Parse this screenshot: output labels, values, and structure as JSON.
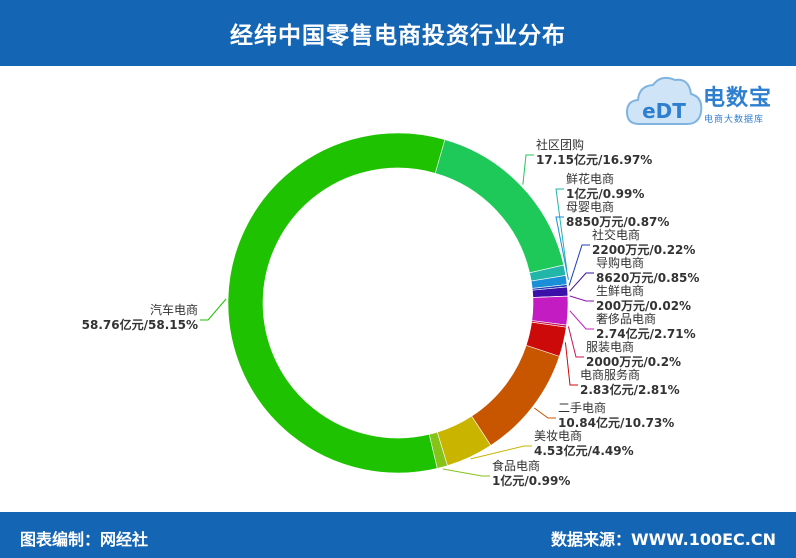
{
  "title": "经纬中国零售电商投资行业分布",
  "footer": {
    "left": "图表编制：网经社",
    "right": "数据来源：WWW.100EC.CN"
  },
  "logo": {
    "name": "电数宝",
    "sub": "电商大数据库",
    "mark": "eDT"
  },
  "colors": {
    "header": "#1565b5"
  },
  "chart_data": {
    "type": "pie",
    "variant": "donut",
    "start_angle_deg": 16,
    "slices": [
      {
        "name": "社区团购",
        "label": "17.15亿元/16.97%",
        "value": 16.97,
        "color": "#1ec95a"
      },
      {
        "name": "鲜花电商",
        "label": "1亿元/0.99%",
        "value": 0.99,
        "color": "#22b6a8"
      },
      {
        "name": "母婴电商",
        "label": "8850万元/0.87%",
        "value": 0.87,
        "color": "#1a8fd8"
      },
      {
        "name": "社交电商",
        "label": "2200万元/0.22%",
        "value": 0.22,
        "color": "#1e3fb5"
      },
      {
        "name": "导购电商",
        "label": "8620万元/0.85%",
        "value": 0.85,
        "color": "#3a10a8"
      },
      {
        "name": "生鲜电商",
        "label": "200万元/0.02%",
        "value": 0.02,
        "color": "#8a10b0"
      },
      {
        "name": "奢侈品电商",
        "label": "2.74亿元/2.71%",
        "value": 2.71,
        "color": "#c21cc2"
      },
      {
        "name": "服装电商",
        "label": "2000万元/0.2%",
        "value": 0.2,
        "color": "#c81452"
      },
      {
        "name": "电商服务商",
        "label": "2.83亿元/2.81%",
        "value": 2.81,
        "color": "#cc0a0a"
      },
      {
        "name": "二手电商",
        "label": "10.84亿元/10.73%",
        "value": 10.73,
        "color": "#c85500"
      },
      {
        "name": "美妆电商",
        "label": "4.53亿元/4.49%",
        "value": 4.49,
        "color": "#c9b400"
      },
      {
        "name": "食品电商",
        "label": "1亿元/0.99%",
        "value": 0.99,
        "color": "#86c21a"
      },
      {
        "name": "汽车电商",
        "label": "58.76亿元/58.15%",
        "value": 58.15,
        "color": "#1ec200"
      }
    ]
  }
}
